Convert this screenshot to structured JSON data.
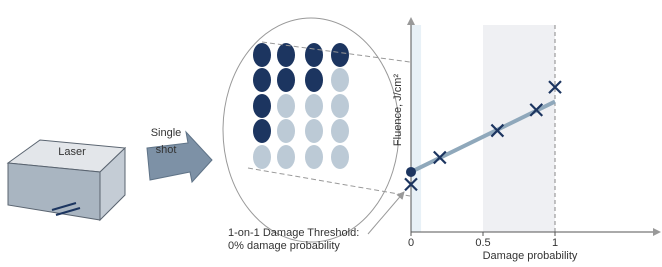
{
  "laser": {
    "label": "Laser"
  },
  "arrow": {
    "label_lines": [
      "Single",
      "shot"
    ]
  },
  "spots": [
    [
      1,
      1,
      1,
      1
    ],
    [
      1,
      1,
      1,
      0
    ],
    [
      1,
      0,
      0,
      0
    ],
    [
      1,
      0,
      0,
      0
    ],
    [
      0,
      0,
      0,
      0
    ]
  ],
  "annotation": {
    "lines": [
      "1-on-1 Damage Threshold:",
      "0% damage probability"
    ]
  },
  "chart_data": {
    "type": "scatter",
    "x_label": "Damage probability",
    "y_label": "Fluence, J/cm²",
    "x": [
      0,
      0.2,
      0.6,
      0.87,
      1.0
    ],
    "values": [
      2.3,
      3.6,
      4.9,
      5.9,
      7.0
    ],
    "color": "#1c3560",
    "threshold": {
      "x": 0,
      "y": 2.9
    },
    "fit": {
      "x": [
        0,
        1
      ],
      "values": [
        2.9,
        6.3
      ],
      "color": "#8fa8bb"
    },
    "bands": [
      [
        0,
        0.07
      ],
      [
        0.5,
        1
      ]
    ],
    "xlim": [
      0,
      1.73
    ],
    "ylim": [
      0,
      10
    ],
    "xticks": [
      0,
      0.5,
      1
    ]
  }
}
